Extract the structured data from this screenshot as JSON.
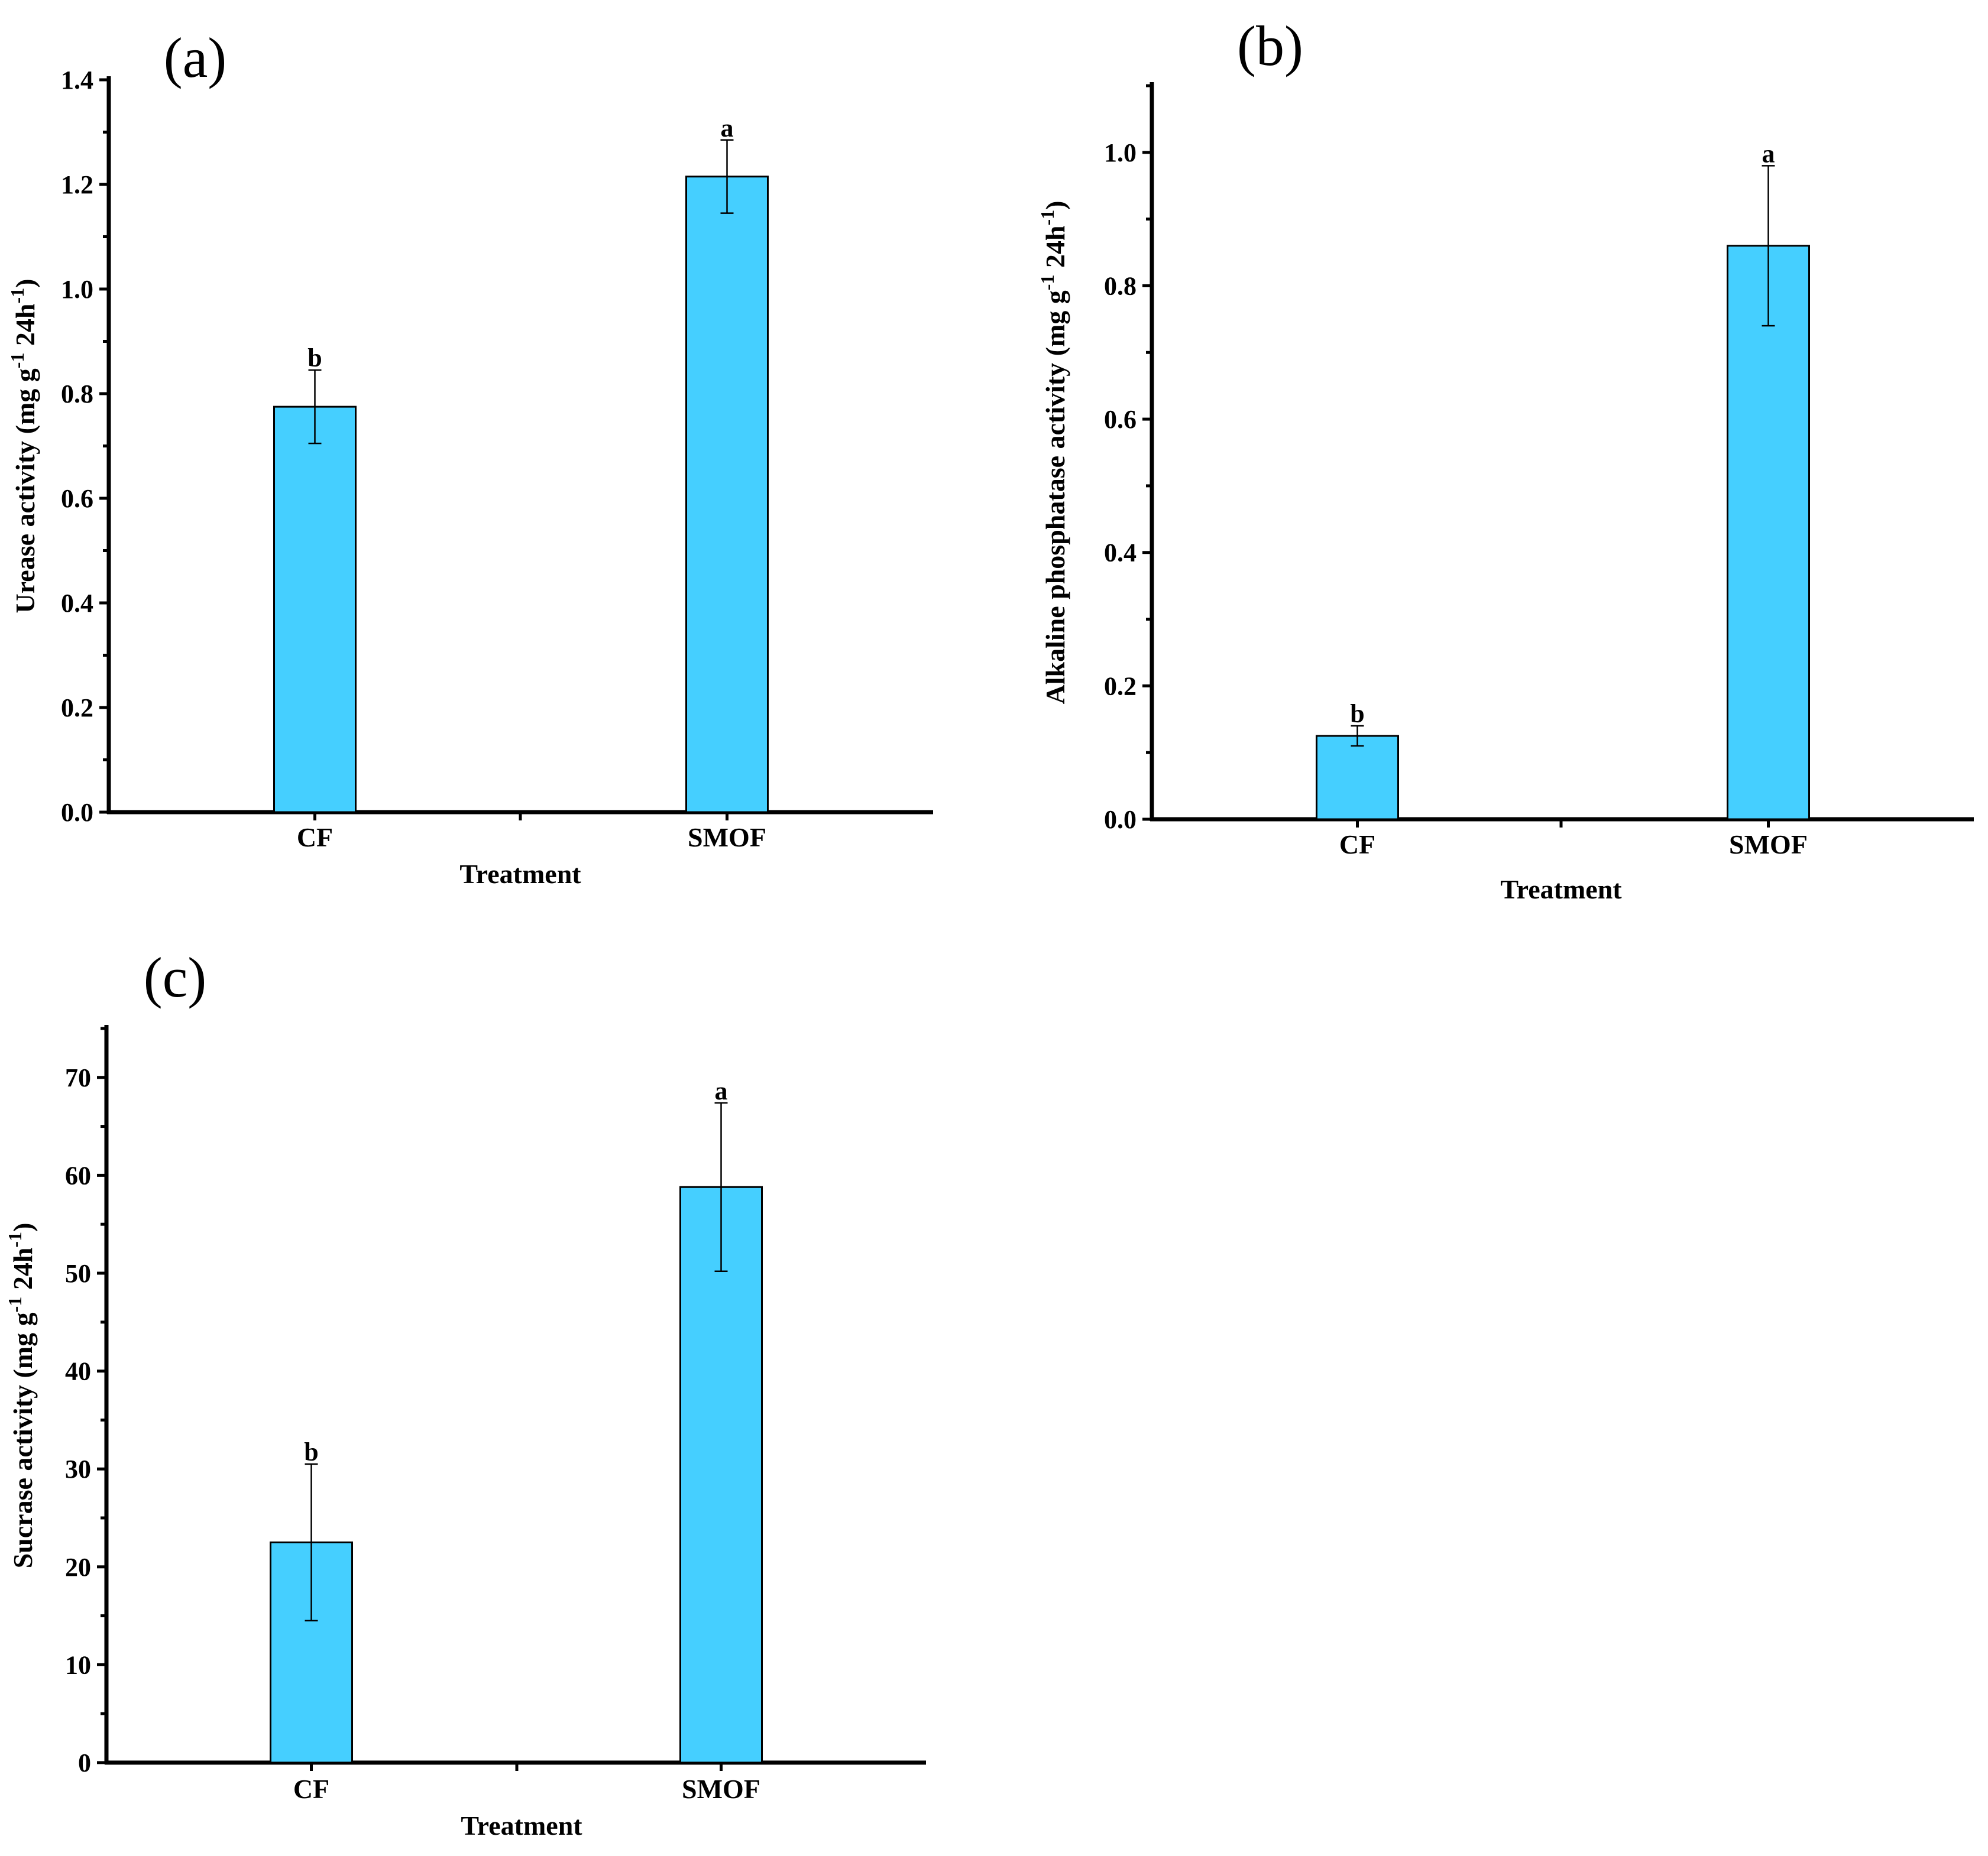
{
  "colors": {
    "bar": "#45cfff",
    "axis": "#000000"
  },
  "chart_data": [
    {
      "type": "bar",
      "panel_label": "(a)",
      "categories": [
        "CF",
        "SMOF"
      ],
      "values": [
        0.775,
        1.215
      ],
      "errors": [
        0.07,
        0.07
      ],
      "significance": [
        "b",
        "a"
      ],
      "xlabel": "Treatment",
      "ylabel": "Urease activity (mg g",
      "ylabel_sup": "-1",
      "ylabel_mid": " 24h",
      "ylabel_sup2": "-1",
      "ylabel_end": ")",
      "ylim": [
        0,
        1.4
      ],
      "yticks": [
        "0.0",
        "0.2",
        "0.4",
        "0.6",
        "0.8",
        "1.0",
        "1.2",
        "1.4"
      ]
    },
    {
      "type": "bar",
      "panel_label": "(b)",
      "categories": [
        "CF",
        "SMOF"
      ],
      "values": [
        0.125,
        0.86
      ],
      "errors": [
        0.015,
        0.12
      ],
      "significance": [
        "b",
        "a"
      ],
      "xlabel": "Treatment",
      "ylabel": "Alkaline phosphatase activity (mg g",
      "ylabel_sup": "-1",
      "ylabel_mid": " 24h",
      "ylabel_sup2": "-1",
      "ylabel_end": ")",
      "ylim": [
        0,
        1.1
      ],
      "yticks": [
        "0.0",
        "0.2",
        "0.4",
        "0.6",
        "0.8",
        "1.0"
      ]
    },
    {
      "type": "bar",
      "panel_label": "(c)",
      "categories": [
        "CF",
        "SMOF"
      ],
      "values": [
        22.5,
        58.8
      ],
      "errors": [
        8,
        8.6
      ],
      "significance": [
        "b",
        "a"
      ],
      "xlabel": "Treatment",
      "ylabel": "Sucrase activity (mg g",
      "ylabel_sup": "-1",
      "ylabel_mid": " 24h",
      "ylabel_sup2": "-1",
      "ylabel_end": ")",
      "ylim": [
        0,
        75
      ],
      "yticks": [
        "0",
        "10",
        "20",
        "30",
        "40",
        "50",
        "60",
        "70"
      ]
    }
  ]
}
